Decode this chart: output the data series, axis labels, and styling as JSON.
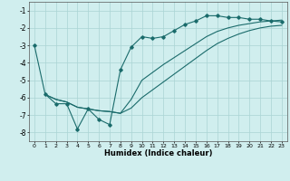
{
  "xlabel": "Humidex (Indice chaleur)",
  "bg_color": "#d0eeee",
  "grid_color": "#aad4d4",
  "line_color": "#1a6b6b",
  "xlim": [
    -0.5,
    23.5
  ],
  "ylim": [
    -8.5,
    -0.5
  ],
  "xticks": [
    0,
    1,
    2,
    3,
    4,
    5,
    6,
    7,
    8,
    9,
    10,
    11,
    12,
    13,
    14,
    15,
    16,
    17,
    18,
    19,
    20,
    21,
    22,
    23
  ],
  "yticks": [
    -8,
    -7,
    -6,
    -5,
    -4,
    -3,
    -2,
    -1
  ],
  "line1_x": [
    0,
    1,
    2,
    3,
    4,
    5,
    6,
    7,
    8,
    9,
    10,
    11,
    12,
    13,
    14,
    15,
    16,
    17,
    18,
    19,
    20,
    21,
    22,
    23
  ],
  "line1_y": [
    -3.0,
    -5.8,
    -6.35,
    -6.35,
    -7.8,
    -6.65,
    -7.25,
    -7.55,
    -4.4,
    -3.1,
    -2.5,
    -2.6,
    -2.5,
    -2.15,
    -1.8,
    -1.6,
    -1.3,
    -1.3,
    -1.4,
    -1.4,
    -1.5,
    -1.5,
    -1.6,
    -1.65
  ],
  "line2_x": [
    1,
    2,
    3,
    4,
    5,
    6,
    7,
    8,
    9,
    10,
    11,
    12,
    13,
    14,
    15,
    16,
    17,
    18,
    19,
    20,
    21,
    22,
    23
  ],
  "line2_y": [
    -5.82,
    -6.1,
    -6.25,
    -6.55,
    -6.65,
    -6.75,
    -6.8,
    -6.9,
    -6.6,
    -6.0,
    -5.55,
    -5.1,
    -4.65,
    -4.2,
    -3.75,
    -3.3,
    -2.9,
    -2.6,
    -2.35,
    -2.15,
    -2.0,
    -1.9,
    -1.85
  ],
  "line3_x": [
    1,
    2,
    3,
    4,
    5,
    6,
    7,
    8,
    9,
    10,
    11,
    12,
    13,
    14,
    15,
    16,
    17,
    18,
    19,
    20,
    21,
    22,
    23
  ],
  "line3_y": [
    -5.82,
    -6.1,
    -6.25,
    -6.55,
    -6.65,
    -6.75,
    -6.8,
    -6.9,
    -6.1,
    -5.0,
    -4.55,
    -4.1,
    -3.7,
    -3.3,
    -2.9,
    -2.5,
    -2.2,
    -2.0,
    -1.85,
    -1.75,
    -1.65,
    -1.6,
    -1.55
  ]
}
